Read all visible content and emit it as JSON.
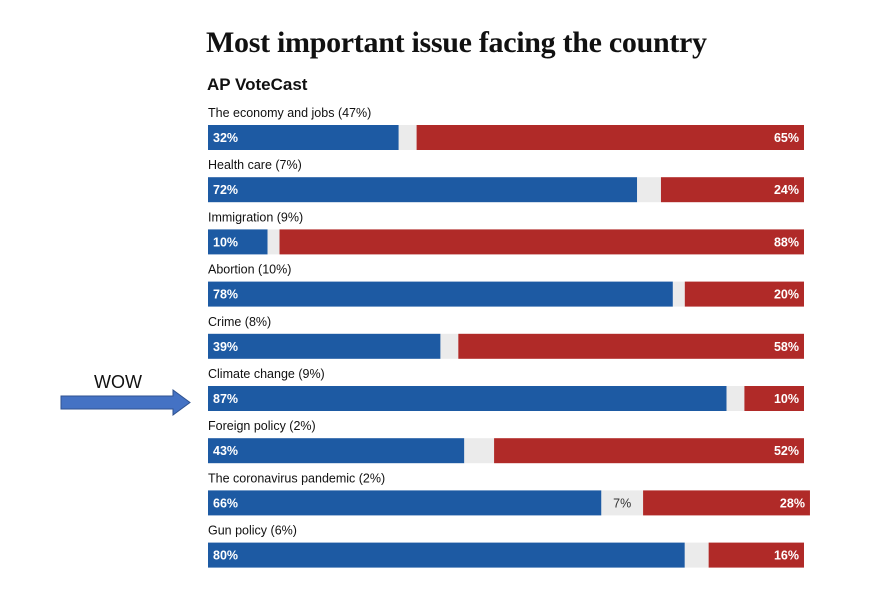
{
  "chart_data": {
    "type": "bar",
    "stacked": true,
    "orientation": "horizontal",
    "title": "Most important issue facing the country",
    "subtitle": "AP VoteCast",
    "categories": [
      "The economy and jobs (47%)",
      "Health care (7%)",
      "Immigration (9%)",
      "Abortion (10%)",
      "Crime (8%)",
      "Climate change (9%)",
      "Foreign policy (2%)",
      "The coronavirus pandemic (2%)",
      "Gun policy (6%)"
    ],
    "series": [
      {
        "values": [
          32,
          72,
          10,
          78,
          39,
          87,
          43,
          66,
          80
        ],
        "labels": [
          "32%",
          "72%",
          "10%",
          "78%",
          "39%",
          "87%",
          "43%",
          "66%",
          "80%"
        ],
        "color": "#1d5aa3"
      },
      {
        "values": [
          3,
          4,
          2,
          2,
          3,
          3,
          5,
          7,
          4
        ],
        "labels": [
          "",
          "",
          "",
          "",
          "",
          "",
          "",
          "7%",
          ""
        ],
        "color": "#ebebeb"
      },
      {
        "values": [
          65,
          24,
          88,
          20,
          58,
          10,
          52,
          28,
          16
        ],
        "labels": [
          "65%",
          "24%",
          "88%",
          "20%",
          "58%",
          "10%",
          "52%",
          "28%",
          "16%"
        ],
        "color": "#b02a28"
      }
    ],
    "xlim": [
      0,
      100
    ],
    "grid": false,
    "legend": "none"
  },
  "annotation": {
    "text": "WOW",
    "target_category": "Climate change (9%)",
    "arrow_color": "#4472c4"
  },
  "colors": {
    "left": "#1d5aa3",
    "middle": "#ebebeb",
    "right": "#b02a28",
    "text_dark": "#111111",
    "middle_label": "#333333"
  }
}
